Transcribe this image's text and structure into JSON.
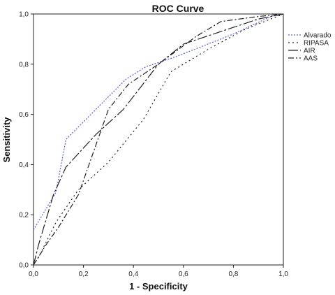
{
  "chart_data": {
    "type": "line",
    "title": "ROC Curve",
    "xlabel": "1 - Specificity",
    "ylabel": "Sensitivity",
    "xlim": [
      0,
      1
    ],
    "ylim": [
      0,
      1
    ],
    "xticks": [
      "0,0",
      "0,2",
      "0,4",
      "0,6",
      "0,8",
      "1,0"
    ],
    "yticks": [
      "0,0",
      "0,2",
      "0,4",
      "0,6",
      "0,8",
      "1,0"
    ],
    "grid": false,
    "legend_position": "top-right",
    "series": [
      {
        "name": "Alvarado",
        "color": "#5b5bd6",
        "dash": "2,2",
        "points": [
          [
            0.0,
            0.14
          ],
          [
            0.09,
            0.29
          ],
          [
            0.13,
            0.5
          ],
          [
            0.37,
            0.74
          ],
          [
            0.45,
            0.79
          ],
          [
            0.57,
            0.83
          ],
          [
            0.8,
            0.92
          ],
          [
            0.95,
            0.99
          ],
          [
            1.0,
            1.0
          ]
        ]
      },
      {
        "name": "RIPASA",
        "color": "#222222",
        "dash": "2,4",
        "points": [
          [
            0.0,
            0.0
          ],
          [
            0.02,
            0.03
          ],
          [
            0.09,
            0.17
          ],
          [
            0.18,
            0.3
          ],
          [
            0.3,
            0.41
          ],
          [
            0.44,
            0.58
          ],
          [
            0.55,
            0.77
          ],
          [
            0.7,
            0.86
          ],
          [
            0.85,
            0.94
          ],
          [
            1.0,
            1.0
          ]
        ]
      },
      {
        "name": "AIR",
        "color": "#222222",
        "dash": "14,3,3,3",
        "points": [
          [
            0.0,
            0.0
          ],
          [
            0.02,
            0.08
          ],
          [
            0.08,
            0.28
          ],
          [
            0.13,
            0.39
          ],
          [
            0.25,
            0.52
          ],
          [
            0.36,
            0.62
          ],
          [
            0.5,
            0.8
          ],
          [
            0.6,
            0.88
          ],
          [
            0.75,
            0.93
          ],
          [
            0.9,
            0.98
          ],
          [
            1.0,
            1.0
          ]
        ]
      },
      {
        "name": "AAS",
        "color": "#222222",
        "dash": "8,3,2,3",
        "points": [
          [
            0.0,
            0.0
          ],
          [
            0.05,
            0.08
          ],
          [
            0.1,
            0.15
          ],
          [
            0.18,
            0.28
          ],
          [
            0.3,
            0.62
          ],
          [
            0.38,
            0.72
          ],
          [
            0.5,
            0.8
          ],
          [
            0.65,
            0.91
          ],
          [
            0.75,
            0.97
          ],
          [
            0.9,
            0.99
          ],
          [
            1.0,
            1.0
          ]
        ]
      }
    ]
  }
}
